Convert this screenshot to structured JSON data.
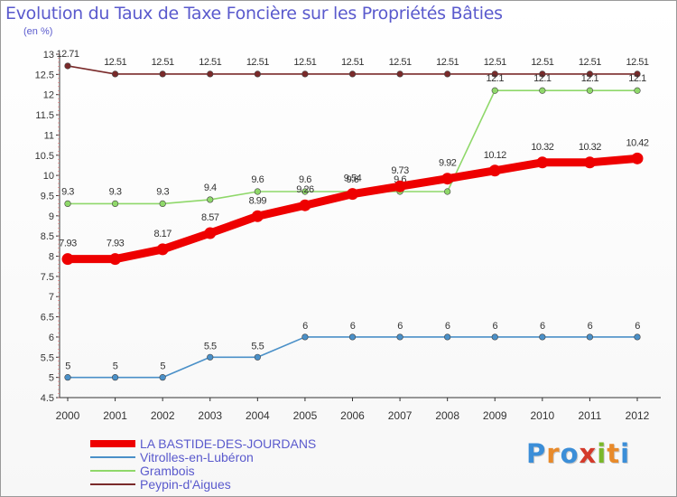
{
  "title": "Evolution du Taux de Taxe Foncière sur les Propriétés Bâties",
  "unit_label": "(en %)",
  "logo": {
    "text": "Proxiti",
    "colors": [
      "#3b8ed8",
      "#e88a2a",
      "#3b8ed8",
      "#d43a2a",
      "#7ab82a",
      "#e88a2a",
      "#3b8ed8"
    ]
  },
  "chart_data": {
    "type": "line",
    "title": "Evolution du Taux de Taxe Foncière sur les Propriétés Bâties",
    "ylabel": "(en %)",
    "xlabel": "",
    "x": [
      "2000",
      "2001",
      "2002",
      "2003",
      "2004",
      "2005",
      "2006",
      "2007",
      "2008",
      "2009",
      "2010",
      "2011",
      "2012"
    ],
    "ylim": [
      4.5,
      13
    ],
    "yticks": [
      "4.5",
      "5",
      "5.5",
      "6",
      "6.5",
      "7",
      "7.5",
      "8",
      "8.5",
      "9",
      "9.5",
      "10",
      "10.5",
      "11",
      "11.5",
      "12",
      "12.5",
      "13"
    ],
    "grid": false,
    "legend_position": "bottom-left",
    "series": [
      {
        "name": "LA BASTIDE-DES-JOURDANS",
        "color": "#ee0000",
        "values": [
          7.93,
          7.93,
          8.17,
          8.57,
          8.99,
          9.26,
          9.54,
          9.73,
          9.92,
          10.12,
          10.32,
          10.32,
          10.42
        ],
        "labels": [
          "7.93",
          "7.93",
          "8.17",
          "8.57",
          "8.99",
          "9.26",
          "9.54",
          "9.73",
          "9.92",
          "10.12",
          "10.32",
          "10.32",
          "10.42"
        ]
      },
      {
        "name": "Vitrolles-en-Lubéron",
        "color": "#4a90c8",
        "values": [
          5,
          5,
          5,
          5.5,
          5.5,
          6,
          6,
          6,
          6,
          6,
          6,
          6,
          6
        ],
        "labels": [
          "5",
          "5",
          "5",
          "5.5",
          "5.5",
          "6",
          "6",
          "6",
          "6",
          "6",
          "6",
          "6",
          "6"
        ]
      },
      {
        "name": "Grambois",
        "color": "#8fd86a",
        "values": [
          9.3,
          9.3,
          9.3,
          9.4,
          9.6,
          9.6,
          9.6,
          9.6,
          9.6,
          12.1,
          12.1,
          12.1,
          12.1
        ],
        "labels": [
          "9.3",
          "9.3",
          "9.3",
          "9.4",
          "9.6",
          "9.6",
          "9.6",
          "9.6",
          "9.6",
          "12.1",
          "12.1",
          "12.1",
          "12.1"
        ]
      },
      {
        "name": "Peypin-d'Aigues",
        "color": "#7a2a2a",
        "values": [
          12.71,
          12.51,
          12.51,
          12.51,
          12.51,
          12.51,
          12.51,
          12.51,
          12.51,
          12.51,
          12.51,
          12.51,
          12.51
        ],
        "labels": [
          "12.71",
          "12.51",
          "12.51",
          "12.51",
          "12.51",
          "12.51",
          "12.51",
          "12.51",
          "12.51",
          "12.51",
          "12.51",
          "12.51",
          "12.51"
        ]
      }
    ]
  }
}
